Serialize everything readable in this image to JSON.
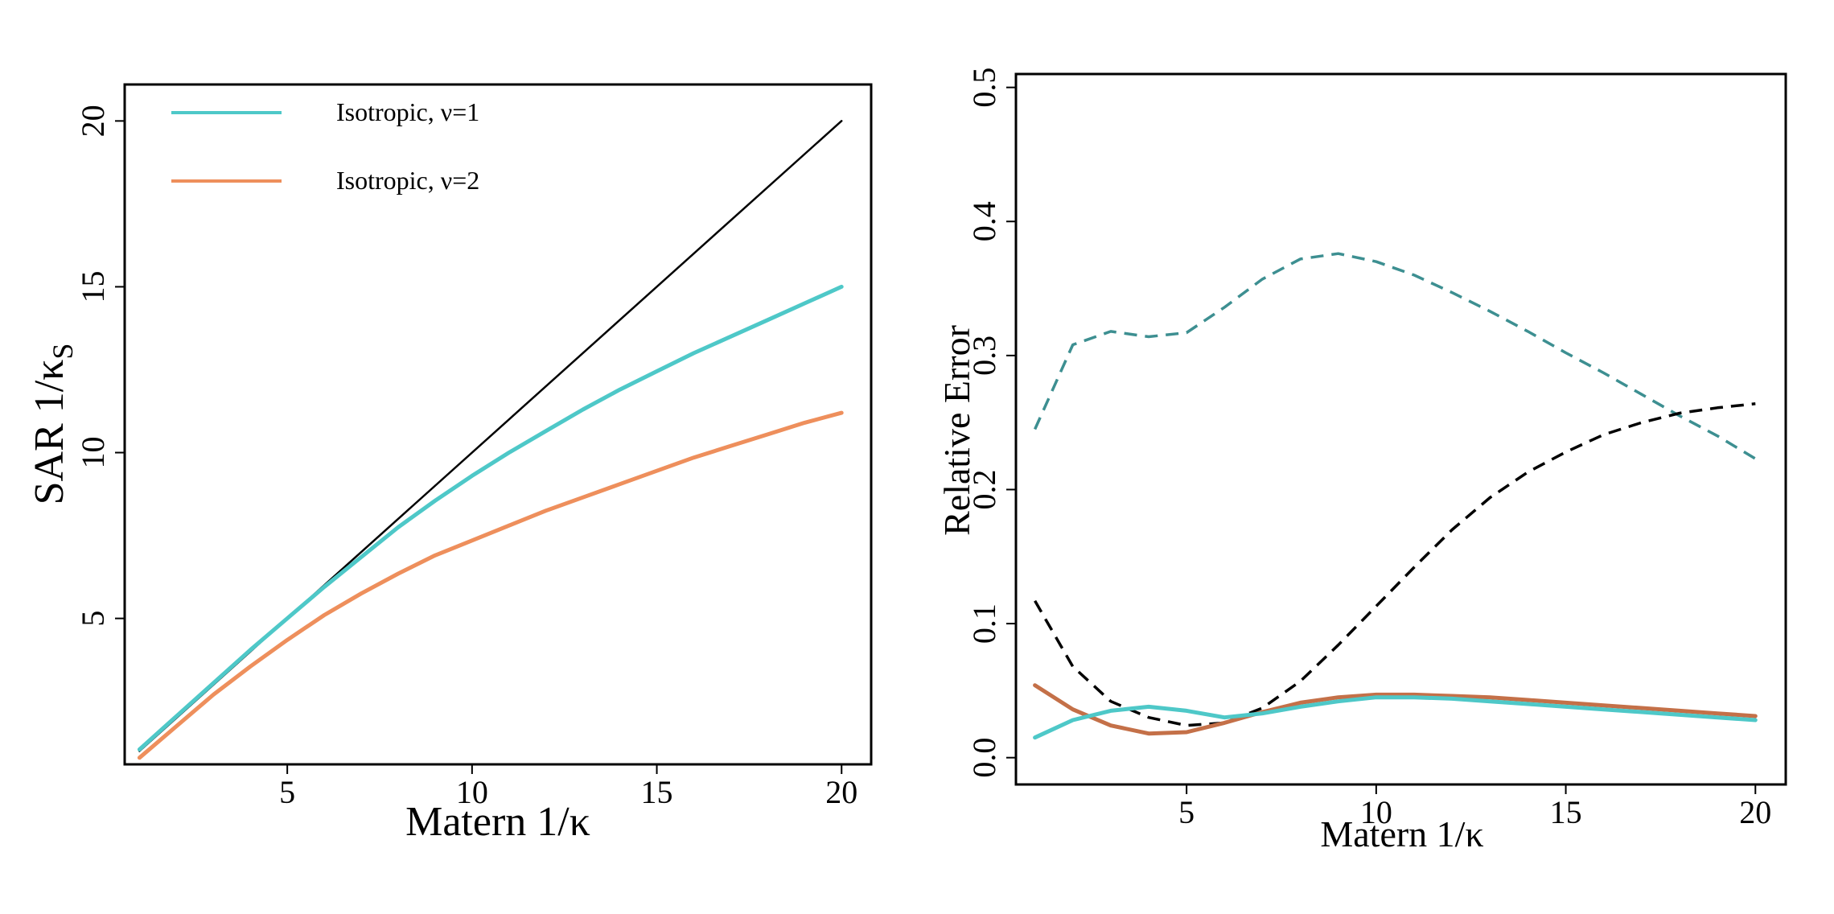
{
  "chart_data": [
    {
      "type": "line",
      "title": "",
      "xlabel": "Matern 1/κ",
      "ylabel": "SAR 1/κ",
      "ylabel_subscript": "S",
      "xlim": [
        0.6,
        20.8
      ],
      "ylim": [
        0.6,
        21.1
      ],
      "xticks": [
        5,
        10,
        15,
        20
      ],
      "yticks": [
        5,
        10,
        15,
        20
      ],
      "legend": {
        "position": "top-left",
        "entries": [
          {
            "label": "Isotropic, ν=1",
            "color": "#4ec8c8"
          },
          {
            "label": "Isotropic, ν=2",
            "color": "#ee8f5c"
          }
        ]
      },
      "series": [
        {
          "name": "identity",
          "color": "#000000",
          "style": "solid",
          "width": 2.5,
          "x": [
            1,
            20
          ],
          "y": [
            1,
            20
          ]
        },
        {
          "name": "Isotropic, ν=1",
          "color": "#4ec8c8",
          "style": "solid",
          "width": 5,
          "x": [
            1,
            2,
            3,
            4,
            5,
            6,
            7,
            8,
            9,
            10,
            11,
            12,
            13,
            14,
            15,
            16,
            17,
            18,
            19,
            20
          ],
          "y": [
            1.05,
            2.05,
            3.05,
            4.05,
            5.0,
            5.95,
            6.85,
            7.75,
            8.55,
            9.3,
            10.0,
            10.65,
            11.3,
            11.9,
            12.45,
            13.0,
            13.5,
            14.0,
            14.5,
            15.0
          ]
        },
        {
          "name": "Isotropic, ν=2",
          "color": "#ee8f5c",
          "style": "solid",
          "width": 5,
          "x": [
            1,
            2,
            3,
            4,
            5,
            6,
            7,
            8,
            9,
            10,
            11,
            12,
            13,
            14,
            15,
            16,
            17,
            18,
            19,
            20
          ],
          "y": [
            0.8,
            1.75,
            2.7,
            3.55,
            4.35,
            5.1,
            5.75,
            6.35,
            6.9,
            7.35,
            7.8,
            8.25,
            8.65,
            9.05,
            9.45,
            9.85,
            10.2,
            10.55,
            10.9,
            11.2
          ]
        }
      ]
    },
    {
      "type": "line",
      "title": "",
      "xlabel": "Matern 1/κ",
      "ylabel": "Relative Error",
      "xlim": [
        0.5,
        20.8
      ],
      "ylim": [
        -0.02,
        0.51
      ],
      "xticks": [
        5,
        10,
        15,
        20
      ],
      "yticks": [
        0.0,
        0.1,
        0.2,
        0.3,
        0.4,
        0.5
      ],
      "ytick_labels": [
        "0.0",
        "0.1",
        "0.2",
        "0.3",
        "0.4",
        "0.5"
      ],
      "series": [
        {
          "name": "teal dashed",
          "color": "#3d8f91",
          "style": "dashed",
          "width": 3.5,
          "x": [
            1,
            2,
            3,
            4,
            5,
            6,
            7,
            8,
            9,
            10,
            11,
            12,
            13,
            14,
            15,
            16,
            17,
            18,
            19,
            20
          ],
          "y": [
            0.245,
            0.308,
            0.318,
            0.314,
            0.317,
            0.336,
            0.357,
            0.372,
            0.376,
            0.37,
            0.36,
            0.347,
            0.333,
            0.318,
            0.302,
            0.287,
            0.271,
            0.255,
            0.24,
            0.223
          ]
        },
        {
          "name": "black dashed",
          "color": "#000000",
          "style": "dashed",
          "width": 3.5,
          "x": [
            1,
            2,
            3,
            4,
            5,
            6,
            7,
            8,
            9,
            10,
            11,
            12,
            13,
            14,
            15,
            16,
            17,
            18,
            19,
            20
          ],
          "y": [
            0.117,
            0.068,
            0.042,
            0.03,
            0.024,
            0.026,
            0.037,
            0.057,
            0.084,
            0.113,
            0.142,
            0.17,
            0.194,
            0.213,
            0.228,
            0.241,
            0.25,
            0.257,
            0.261,
            0.264
          ]
        },
        {
          "name": "brown solid",
          "color": "#c47048",
          "style": "solid",
          "width": 5,
          "x": [
            1,
            2,
            3,
            4,
            5,
            6,
            7,
            8,
            9,
            10,
            11,
            12,
            13,
            14,
            15,
            16,
            17,
            18,
            19,
            20
          ],
          "y": [
            0.054,
            0.036,
            0.024,
            0.018,
            0.019,
            0.026,
            0.034,
            0.041,
            0.045,
            0.047,
            0.047,
            0.046,
            0.045,
            0.043,
            0.041,
            0.039,
            0.037,
            0.035,
            0.033,
            0.031
          ]
        },
        {
          "name": "cyan solid",
          "color": "#4ec8c8",
          "style": "solid",
          "width": 5,
          "x": [
            1,
            2,
            3,
            4,
            5,
            6,
            7,
            8,
            9,
            10,
            11,
            12,
            13,
            14,
            15,
            16,
            17,
            18,
            19,
            20
          ],
          "y": [
            0.015,
            0.028,
            0.035,
            0.038,
            0.035,
            0.03,
            0.033,
            0.038,
            0.042,
            0.045,
            0.045,
            0.044,
            0.042,
            0.04,
            0.038,
            0.036,
            0.034,
            0.032,
            0.03,
            0.028
          ]
        }
      ]
    }
  ]
}
